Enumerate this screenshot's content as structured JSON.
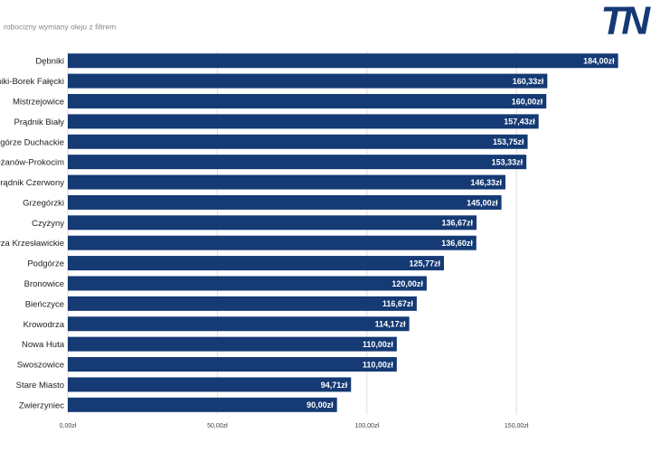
{
  "logo": "TN",
  "chart_data": {
    "type": "barh",
    "title": "robocizny wymiany oleju z filtrem",
    "categories": [
      "Dębniki",
      "Łagiewniki-Borek Fałęcki",
      "Mistrzejowice",
      "Prądnik Biały",
      "Podgórze Duchackie",
      "Bieżanów-Prokocim",
      "Prądnik Czerwony",
      "Grzegórzki",
      "Czyżyny",
      "Wzgórza Krzesławickie",
      "Podgórze",
      "Bronowice",
      "Bieńczyce",
      "Krowodrza",
      "Nowa Huta",
      "Swoszowice",
      "Stare Miasto",
      "Zwierzyniec"
    ],
    "values": [
      184.0,
      160.33,
      160.0,
      157.43,
      153.75,
      153.33,
      146.33,
      145.0,
      136.67,
      136.6,
      125.77,
      120.0,
      116.67,
      114.17,
      110.0,
      110.0,
      94.71,
      90.0
    ],
    "value_labels": [
      "184,00zł",
      "160,33zł",
      "160,00zł",
      "157,43zł",
      "153,75zł",
      "153,33zł",
      "146,33zł",
      "145,00zł",
      "136,67zł",
      "136,60zł",
      "125,77zł",
      "120,00zł",
      "116,67zł",
      "114,17zł",
      "110,00zł",
      "110,00zł",
      "94,71zł",
      "90,00zł"
    ],
    "color": "#153a74",
    "xlim": [
      0,
      195
    ],
    "xticks": [
      {
        "value": 0,
        "label": "0,00zł"
      },
      {
        "value": 50,
        "label": "50,00zł"
      },
      {
        "value": 100,
        "label": "100,00zł"
      },
      {
        "value": 150,
        "label": "150,00zł"
      }
    ],
    "grid": true
  }
}
